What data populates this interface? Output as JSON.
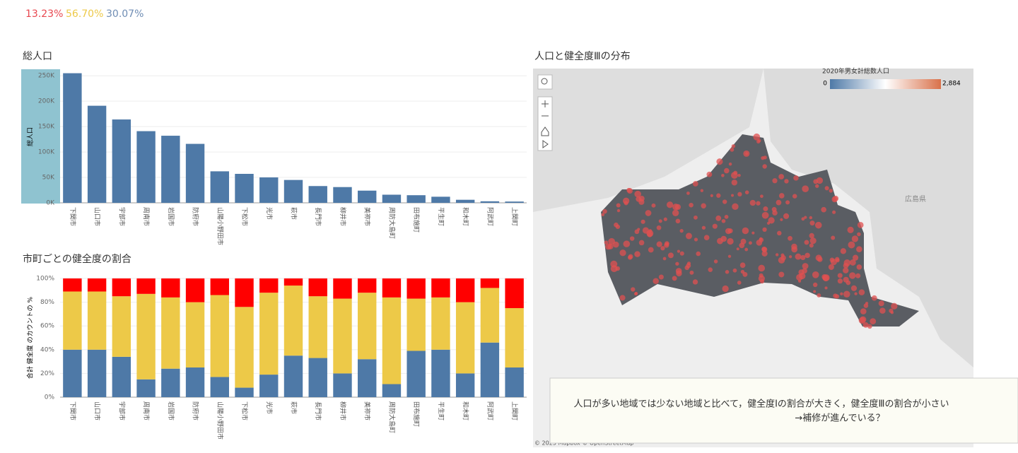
{
  "header": {
    "summary": [
      "13.23%",
      "56.70%",
      "30.07%"
    ]
  },
  "chart_data": [
    {
      "type": "bar",
      "title": "総人口",
      "y_label": "総人口",
      "color": "#4e79a7",
      "categories": [
        "下関市",
        "山口市",
        "宇部市",
        "周南市",
        "岩国市",
        "防府市",
        "山陽小野田市",
        "下松市",
        "光市",
        "萩市",
        "長門市",
        "柳井市",
        "美祢市",
        "周防大島町",
        "田布施町",
        "平生町",
        "和木町",
        "阿武町",
        "上関町"
      ],
      "values": [
        255000,
        191000,
        164000,
        141000,
        132000,
        116000,
        62000,
        57000,
        50000,
        45000,
        33000,
        31000,
        24000,
        16000,
        15000,
        12000,
        6000,
        3000,
        2500
      ],
      "ylim": [
        0,
        260000
      ],
      "yticks": [
        {
          "value": 0,
          "label": "0K"
        },
        {
          "value": 50000,
          "label": "50K"
        },
        {
          "value": 100000,
          "label": "100K"
        },
        {
          "value": 150000,
          "label": "150K"
        },
        {
          "value": 200000,
          "label": "200K"
        },
        {
          "value": 250000,
          "label": "250K"
        }
      ],
      "grid": true
    },
    {
      "type": "stacked_bar",
      "title": "市町ごとの健全度の割合",
      "y_label": "合計 健全度 のカウントの %",
      "categories": [
        "下関市",
        "山口市",
        "宇部市",
        "周南市",
        "岩国市",
        "防府市",
        "山陽小野田市",
        "下松市",
        "光市",
        "萩市",
        "長門市",
        "柳井市",
        "美祢市",
        "周防大島町",
        "田布施町",
        "平生町",
        "和木町",
        "阿武町",
        "上関町"
      ],
      "series": [
        {
          "color": "#4e79a7",
          "values": [
            40,
            40,
            34,
            15,
            24,
            25,
            17,
            8,
            19,
            35,
            33,
            20,
            32,
            11,
            39,
            40,
            20,
            46,
            25
          ]
        },
        {
          "color": "#edc948",
          "values": [
            49,
            49,
            51,
            72,
            60,
            55,
            69,
            68,
            69,
            59,
            52,
            63,
            56,
            73,
            44,
            44,
            60,
            46,
            50
          ]
        },
        {
          "color": "#ff0000",
          "values": [
            11,
            11,
            15,
            13,
            16,
            20,
            14,
            24,
            12,
            6,
            15,
            17,
            12,
            16,
            17,
            16,
            20,
            8,
            25
          ]
        }
      ],
      "ylim": [
        0,
        100
      ],
      "yticks": [
        {
          "value": 0,
          "label": "0%"
        },
        {
          "value": 20,
          "label": "20%"
        },
        {
          "value": 40,
          "label": "40%"
        },
        {
          "value": 60,
          "label": "60%"
        },
        {
          "value": 80,
          "label": "80%"
        },
        {
          "value": 100,
          "label": "100%"
        }
      ],
      "grid": true
    }
  ],
  "map": {
    "title": "人口と健全度Ⅲの分布",
    "legend_title": "2020年男女計総数人口",
    "legend_min": "0",
    "legend_max": "2,884",
    "place_label": "広島県",
    "attribution": "© 2025 Mapbox  © OpenStreetMap",
    "annotation": [
      "人口が多い地域では少ない地域と比べて，健全度Ⅰの割合が大きく，健全度Ⅲの割合が小さい",
      "→補修が進んでいる？"
    ]
  }
}
